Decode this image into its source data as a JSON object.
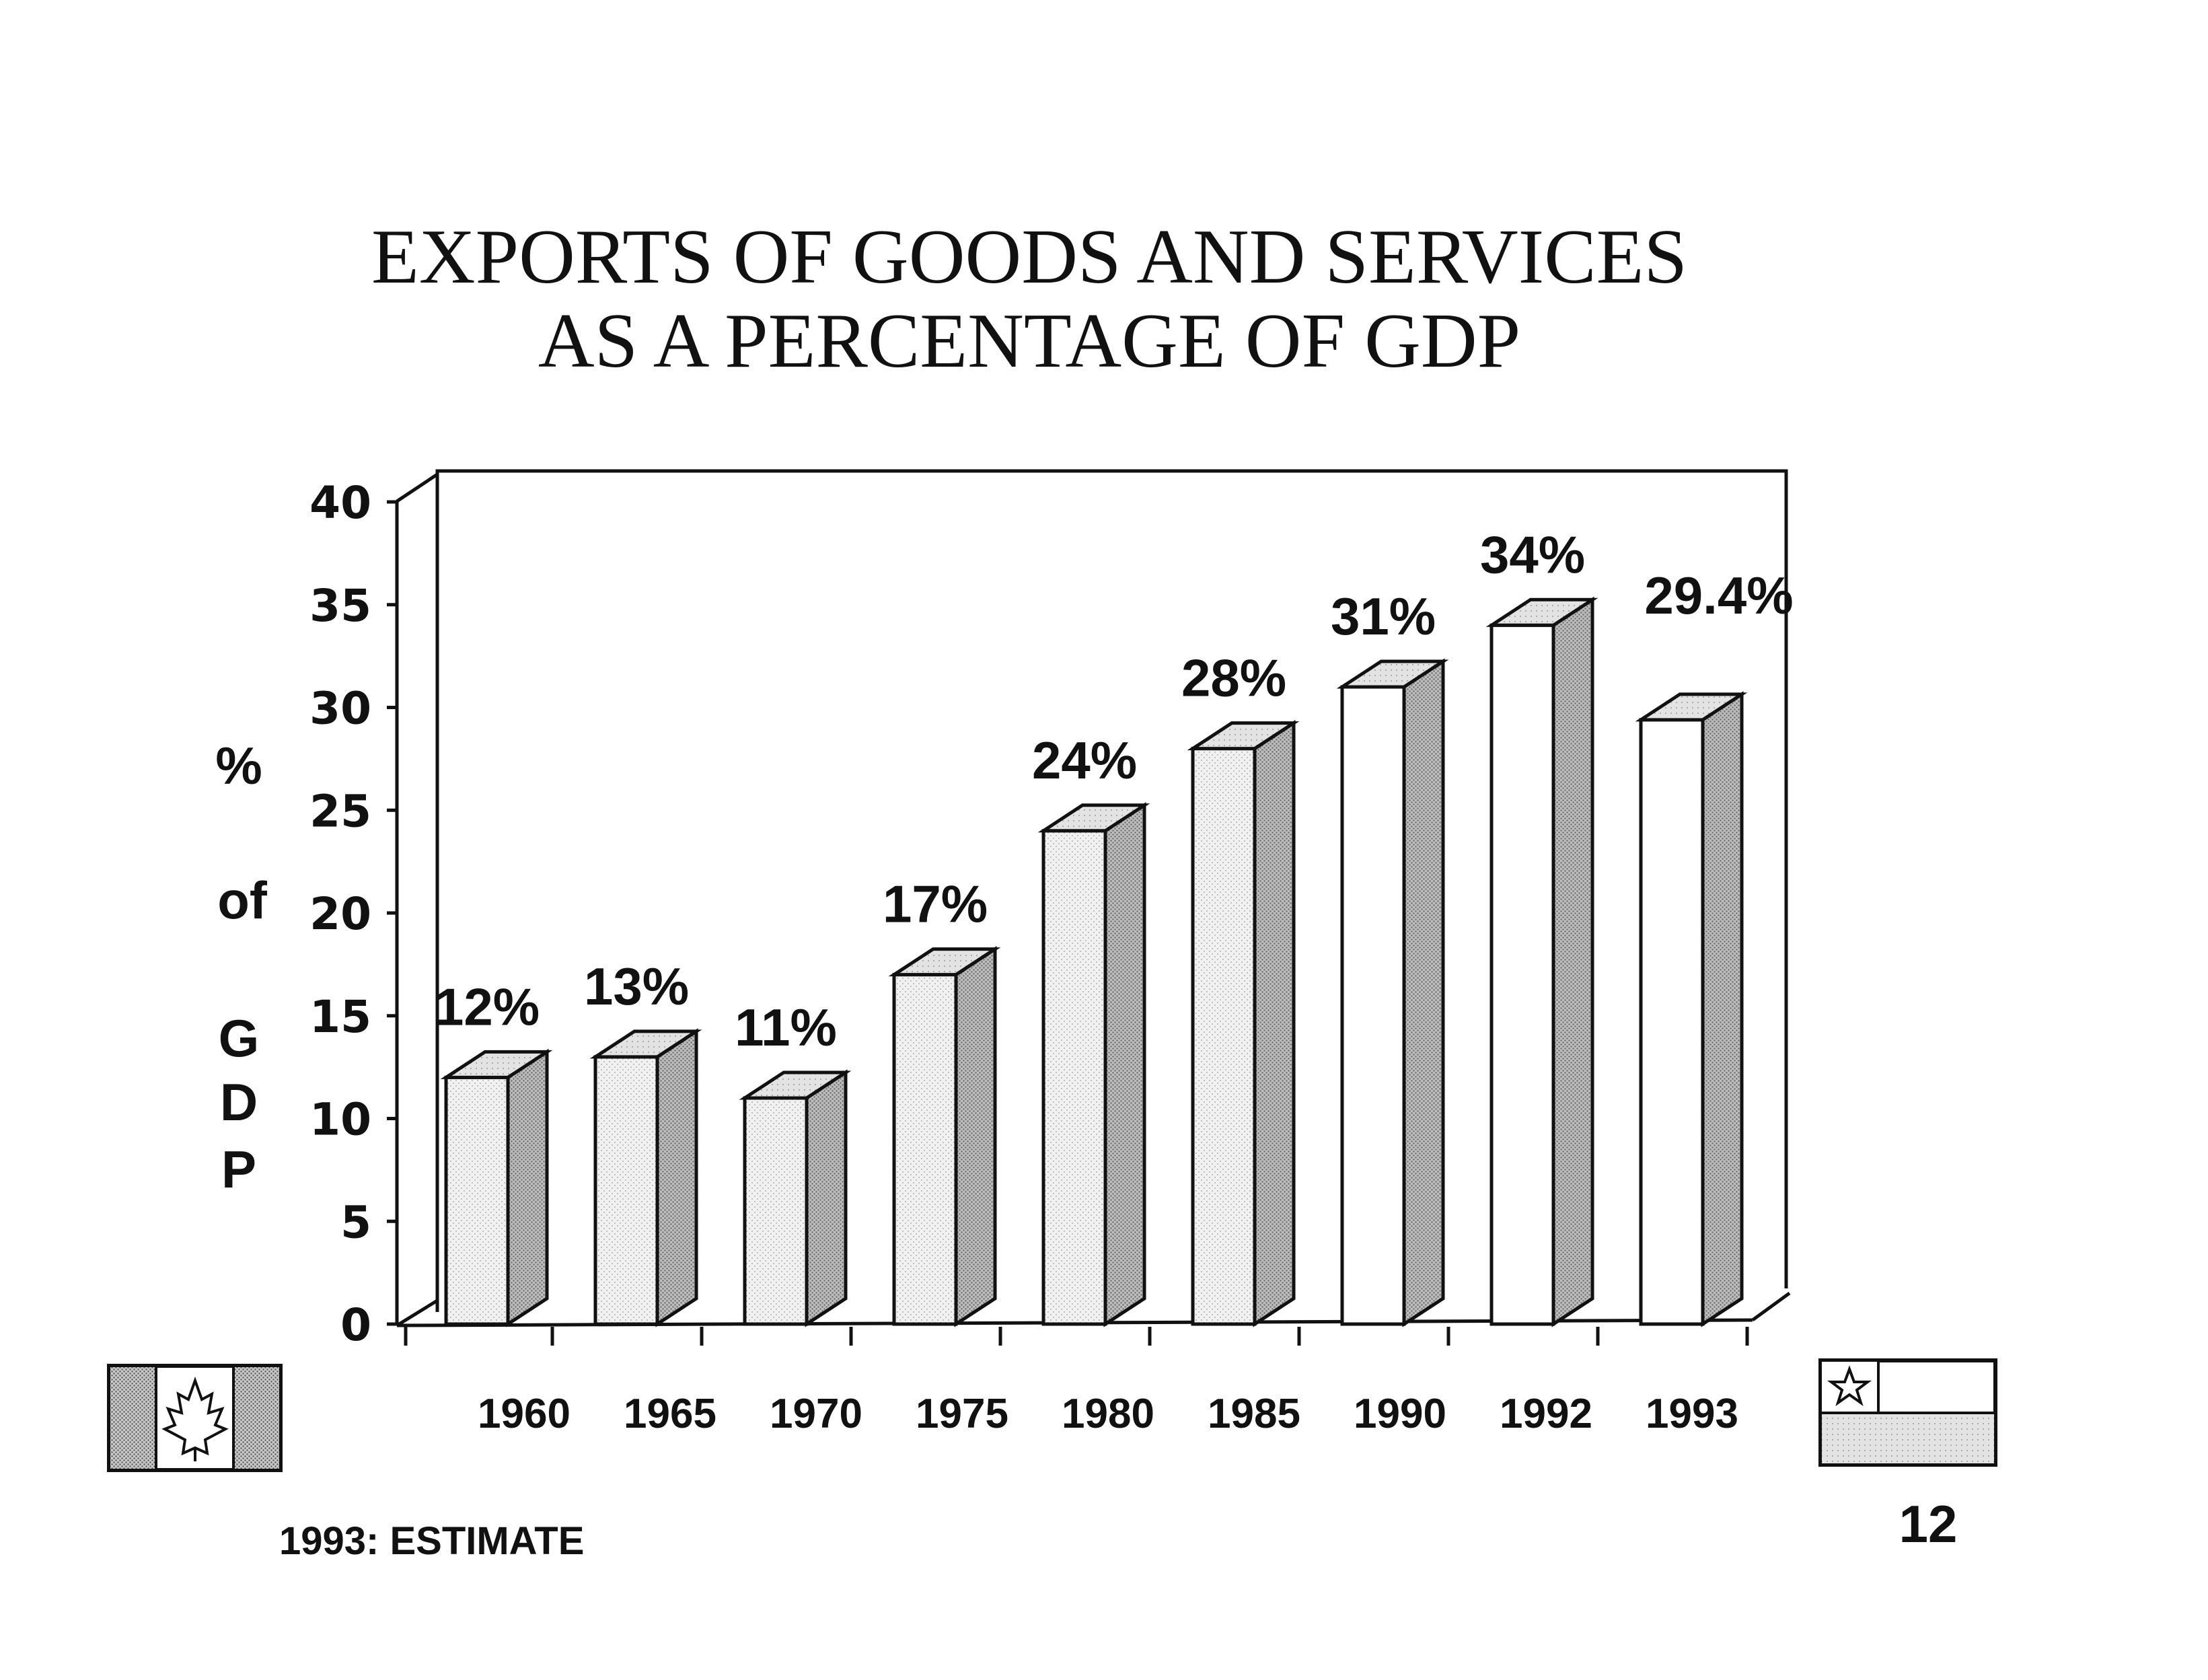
{
  "chart_data": {
    "type": "bar",
    "title_lines": [
      "EXPORTS OF GOODS AND SERVICES",
      "AS A PERCENTAGE OF GDP"
    ],
    "ylabel_lines": [
      "%",
      "of",
      "G",
      "D",
      "P"
    ],
    "categories": [
      "1960",
      "1965",
      "1970",
      "1975",
      "1980",
      "1985",
      "1990",
      "1992",
      "1993"
    ],
    "values": [
      12,
      13,
      11,
      17,
      24,
      28,
      31,
      34,
      29.4
    ],
    "data_labels": [
      "12%",
      "13%",
      "11%",
      "17%",
      "24%",
      "28%",
      "31%",
      "34%",
      "29.4%"
    ],
    "y_ticks": [
      "0",
      "5",
      "10",
      "15",
      "20",
      "25",
      "30",
      "35",
      "40"
    ],
    "ylim": [
      0,
      40
    ],
    "style": "3d-bars",
    "grid": false,
    "legend": "none"
  },
  "footnote": "1993: ESTIMATE",
  "page_number": "12",
  "icons": {
    "left": "canada-flag-icon",
    "right": "chile-flag-icon"
  },
  "colors": {
    "ink": "#111111",
    "bar_face": "#ececec",
    "bar_side": "#9a9a9a",
    "bar_top": "#dadada",
    "background": "#ffffff"
  }
}
